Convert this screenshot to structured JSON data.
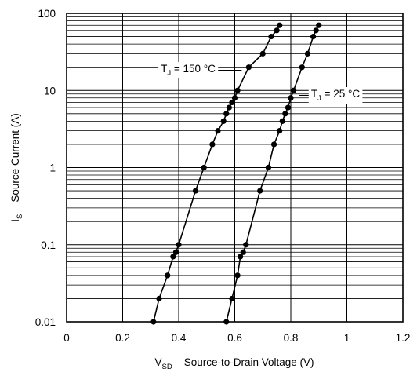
{
  "chart_data": {
    "type": "scatter",
    "title": "",
    "xlabel": {
      "main": "V",
      "sub": "SD",
      "rest": " – Source-to-Drain Voltage (V)"
    },
    "ylabel": {
      "main": "I",
      "sub": "S",
      "rest": " – Source Current (A)"
    },
    "x_scale": "linear",
    "y_scale": "log",
    "xlim": [
      0,
      1.2
    ],
    "ylim": [
      0.01,
      100
    ],
    "x_ticks": [
      0,
      0.2,
      0.4,
      0.6,
      0.8,
      1,
      1.2
    ],
    "x_tick_labels": [
      "0",
      "0.2",
      "0.4",
      "0.6",
      "0.8",
      "1",
      "1.2"
    ],
    "y_ticks": [
      0.01,
      0.1,
      1,
      10,
      100
    ],
    "y_tick_labels": [
      "0.01",
      "0.1",
      "1",
      "10",
      "100"
    ],
    "grid": true,
    "series": [
      {
        "label": {
          "main": "T",
          "sub": "J",
          "rest": " = 150 °C"
        },
        "points": [
          [
            0.31,
            0.01
          ],
          [
            0.33,
            0.02
          ],
          [
            0.36,
            0.04
          ],
          [
            0.38,
            0.07
          ],
          [
            0.39,
            0.08
          ],
          [
            0.4,
            0.1
          ],
          [
            0.46,
            0.5
          ],
          [
            0.49,
            1.0
          ],
          [
            0.52,
            2.0
          ],
          [
            0.54,
            3.0
          ],
          [
            0.56,
            4.0
          ],
          [
            0.57,
            5.0
          ],
          [
            0.58,
            6.0
          ],
          [
            0.59,
            7.0
          ],
          [
            0.6,
            8.0
          ],
          [
            0.61,
            10.0
          ],
          [
            0.65,
            20.0
          ],
          [
            0.7,
            30.0
          ],
          [
            0.73,
            50.0
          ],
          [
            0.75,
            60.0
          ],
          [
            0.76,
            70.0
          ]
        ]
      },
      {
        "label": {
          "main": "T",
          "sub": "J",
          "rest": " = 25 °C"
        },
        "points": [
          [
            0.57,
            0.01
          ],
          [
            0.59,
            0.02
          ],
          [
            0.61,
            0.04
          ],
          [
            0.62,
            0.07
          ],
          [
            0.63,
            0.08
          ],
          [
            0.64,
            0.1
          ],
          [
            0.69,
            0.5
          ],
          [
            0.72,
            1.0
          ],
          [
            0.74,
            2.0
          ],
          [
            0.76,
            3.0
          ],
          [
            0.77,
            4.0
          ],
          [
            0.78,
            5.0
          ],
          [
            0.79,
            6.0
          ],
          [
            0.8,
            8.0
          ],
          [
            0.81,
            10.0
          ],
          [
            0.84,
            20.0
          ],
          [
            0.86,
            30.0
          ],
          [
            0.88,
            50.0
          ],
          [
            0.89,
            60.0
          ],
          [
            0.9,
            70.0
          ]
        ]
      }
    ],
    "colors": {
      "background": "#ffffff",
      "line": "#000000",
      "grid": "#000000"
    }
  }
}
